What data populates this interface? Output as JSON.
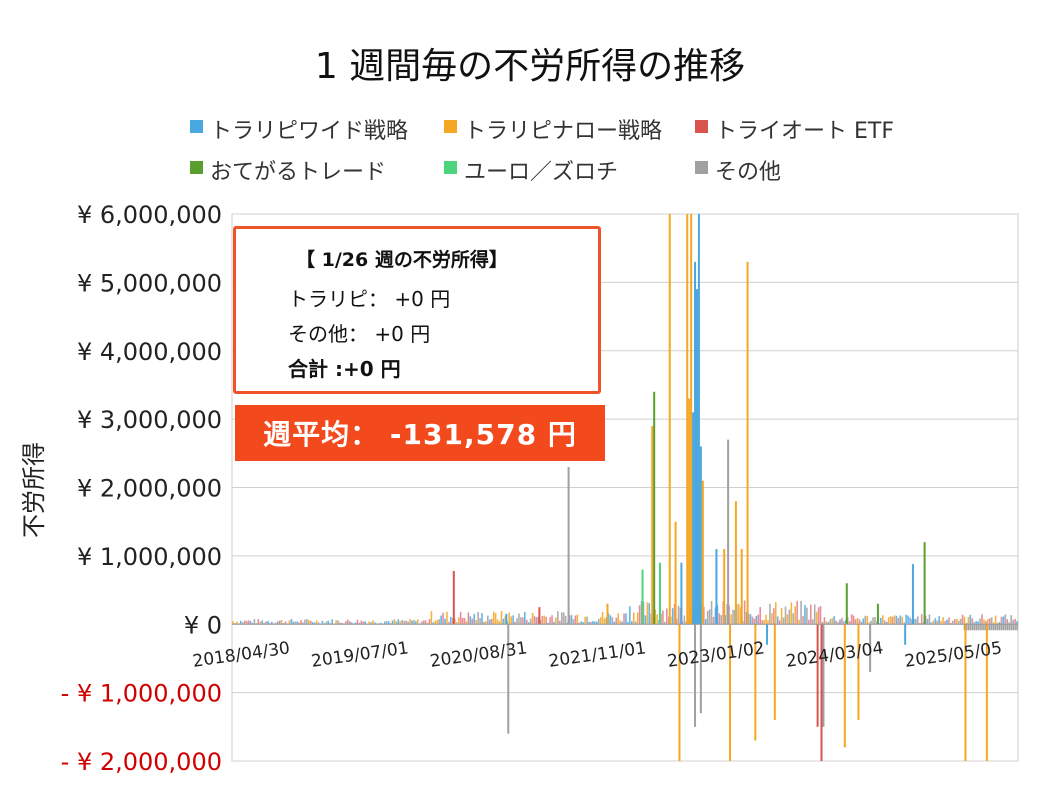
{
  "colors": {
    "trarip_wide": "#4aa8e0",
    "trarip_narrow": "#f5a623",
    "tri_auto_etf": "#d9534f",
    "otegaru": "#5a9e2f",
    "euro_zuloti": "#4cd47c",
    "other": "#a0a0a0"
  },
  "chart_data": {
    "type": "bar",
    "title": "1 週間毎の不労所得の推移",
    "ylabel": "不労所得",
    "ylim": [
      -2000000,
      6000000
    ],
    "yticks": [
      {
        "value": 6000000,
        "label": "¥ 6,000,000"
      },
      {
        "value": 5000000,
        "label": "¥ 5,000,000"
      },
      {
        "value": 4000000,
        "label": "¥ 4,000,000"
      },
      {
        "value": 3000000,
        "label": "¥ 3,000,000"
      },
      {
        "value": 2000000,
        "label": "¥ 2,000,000"
      },
      {
        "value": 1000000,
        "label": "¥ 1,000,000"
      },
      {
        "value": 0,
        "label": "¥ 0"
      },
      {
        "value": -1000000,
        "label": "- ¥ 1,000,000"
      },
      {
        "value": -2000000,
        "label": "- ¥ 2,000,000"
      }
    ],
    "xticks": [
      "2018/04/30",
      "2019/07/01",
      "2020/08/31",
      "2021/11/01",
      "2023/01/02",
      "2024/03/04",
      "2025/05/05"
    ],
    "grid": true,
    "legend_position": "top",
    "series": [
      {
        "name": "トラリピワイド戦略",
        "color_key": "trarip_wide",
        "spikes": [
          {
            "date": "2021/01/11",
            "value": 150000
          },
          {
            "date": "2022/10/03",
            "value": 900000
          },
          {
            "date": "2022/11/14",
            "value": 3100000
          },
          {
            "date": "2022/11/21",
            "value": 5300000
          },
          {
            "date": "2022/11/28",
            "value": 4900000
          },
          {
            "date": "2022/12/05",
            "value": 6000000
          },
          {
            "date": "2022/12/12",
            "value": 2600000
          },
          {
            "date": "2023/02/06",
            "value": 1100000
          },
          {
            "date": "2023/08/07",
            "value": -300000
          },
          {
            "date": "2025/01/13",
            "value": 880000
          },
          {
            "date": "2024/12/16",
            "value": -300000
          }
        ]
      },
      {
        "name": "トラリピナロー戦略",
        "color_key": "trarip_narrow",
        "spikes": [
          {
            "date": "2022/01/10",
            "value": 300000
          },
          {
            "date": "2022/06/20",
            "value": 2900000
          },
          {
            "date": "2022/08/22",
            "value": 6000000
          },
          {
            "date": "2022/09/12",
            "value": 1500000
          },
          {
            "date": "2022/09/26",
            "value": -2000000
          },
          {
            "date": "2022/10/24",
            "value": 6000000
          },
          {
            "date": "2022/10/31",
            "value": 3300000
          },
          {
            "date": "2022/11/07",
            "value": 6000000
          },
          {
            "date": "2022/12/19",
            "value": 2100000
          },
          {
            "date": "2023/03/06",
            "value": 1100000
          },
          {
            "date": "2023/03/27",
            "value": -2000000
          },
          {
            "date": "2023/04/17",
            "value": 1800000
          },
          {
            "date": "2023/05/08",
            "value": 1100000
          },
          {
            "date": "2023/05/29",
            "value": 5300000
          },
          {
            "date": "2023/06/26",
            "value": -1700000
          },
          {
            "date": "2023/09/04",
            "value": -1400000
          },
          {
            "date": "2024/05/13",
            "value": -1800000
          },
          {
            "date": "2024/07/01",
            "value": -1400000
          },
          {
            "date": "2025/07/21",
            "value": -2000000
          },
          {
            "date": "2025/10/06",
            "value": -2000000
          }
        ]
      },
      {
        "name": "トライオート ETF",
        "color_key": "tri_auto_etf",
        "spikes": [
          {
            "date": "2020/07/06",
            "value": 780000
          },
          {
            "date": "2021/05/10",
            "value": 250000
          },
          {
            "date": "2024/02/05",
            "value": -1500000
          },
          {
            "date": "2024/02/19",
            "value": -2000000
          }
        ]
      },
      {
        "name": "おてがるトレード",
        "color_key": "otegaru",
        "spikes": [
          {
            "date": "2022/06/27",
            "value": 3400000
          },
          {
            "date": "2024/05/20",
            "value": 600000
          },
          {
            "date": "2025/02/24",
            "value": 1200000
          },
          {
            "date": "2024/09/09",
            "value": 300000
          }
        ]
      },
      {
        "name": "ユーロ／ズロチ",
        "color_key": "euro_zuloti",
        "spikes": [
          {
            "date": "2022/05/16",
            "value": 800000
          },
          {
            "date": "2022/07/18",
            "value": 900000
          }
        ]
      },
      {
        "name": "その他",
        "color_key": "other",
        "spikes": [
          {
            "date": "2021/01/18",
            "value": -1600000
          },
          {
            "date": "2021/08/23",
            "value": 2300000
          },
          {
            "date": "2022/11/21",
            "value": -1500000
          },
          {
            "date": "2022/12/12",
            "value": -1300000
          },
          {
            "date": "2023/03/20",
            "value": 2700000
          },
          {
            "date": "2024/02/26",
            "value": -1500000
          },
          {
            "date": "2024/08/12",
            "value": -700000
          }
        ]
      }
    ]
  },
  "info_box": {
    "title": "【 1/26 週の不労所得】",
    "trarip_label": "トラリピ： +0 円",
    "other_label": "その他： +0 円",
    "total_label": "合計 :+0 円"
  },
  "weekly_average": "週平均： -131,578 円"
}
